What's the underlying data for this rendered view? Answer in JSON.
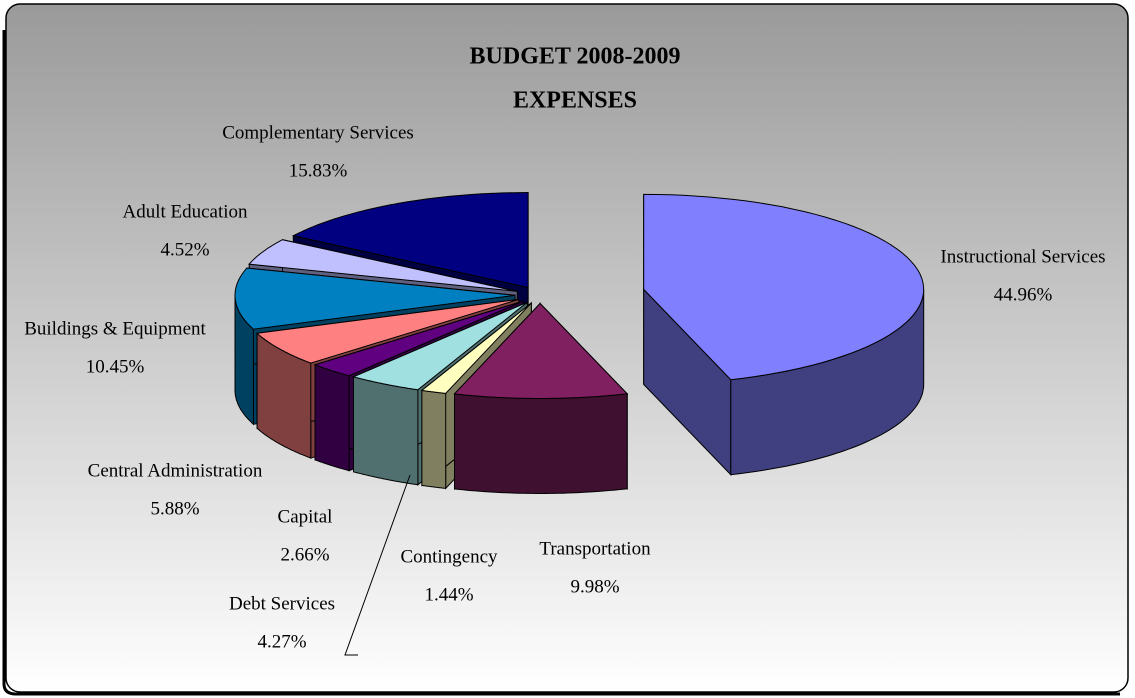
{
  "chart_data": {
    "type": "pie3d",
    "title": "BUDGET 2008-2009",
    "subtitle": "EXPENSES",
    "categories": [
      "Instructional Services",
      "Transportation",
      "Contingency",
      "Debt Services",
      "Capital",
      "Central Administration",
      "Buildings & Equipment",
      "Adult Education",
      "Complementary Services"
    ],
    "values": [
      44.96,
      9.98,
      1.44,
      4.27,
      2.66,
      5.88,
      10.45,
      4.52,
      15.83
    ],
    "value_labels": [
      "44.96%",
      "9.98%",
      "1.44%",
      "4.27%",
      "2.66%",
      "5.88%",
      "10.45%",
      "4.52%",
      "15.83%"
    ],
    "colors": [
      "#8080ff",
      "#802060",
      "#ffffc0",
      "#a0e0e0",
      "#600080",
      "#ff8080",
      "#0080c0",
      "#c0c0ff",
      "#000080"
    ]
  }
}
